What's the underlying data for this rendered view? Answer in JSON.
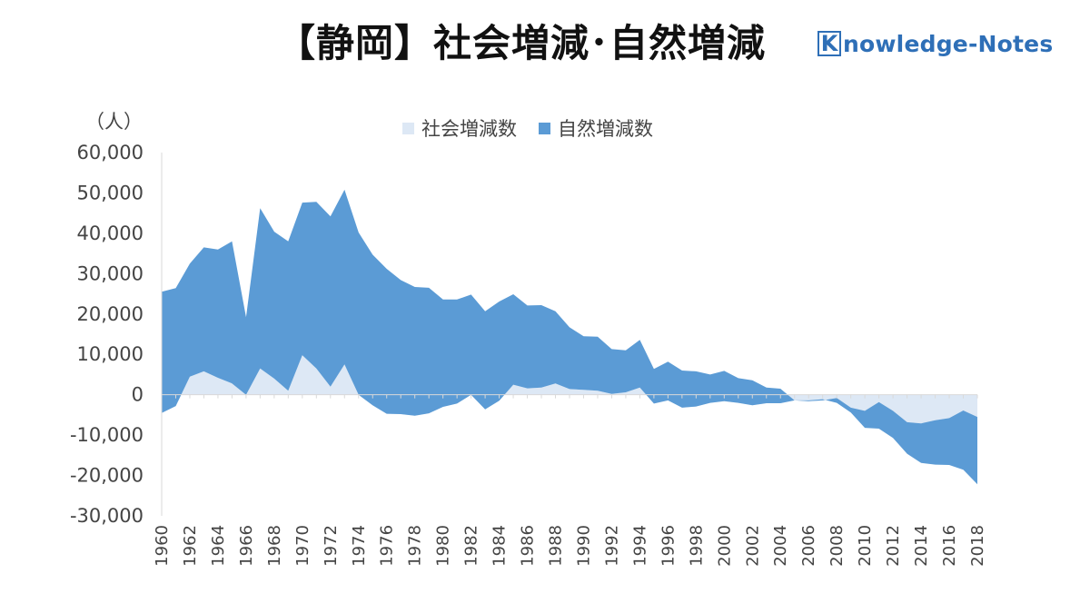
{
  "title": "【静岡】社会増減･自然増減",
  "logo": {
    "mark": "K",
    "text": "nowledge-Notes"
  },
  "colors": {
    "social": "#dde8f5",
    "natural": "#5b9bd5",
    "axis": "#d9d9d9",
    "logo": "#2e6fb7"
  },
  "chart_data": {
    "type": "area",
    "stacked": true,
    "unit_label": "（人）",
    "ylim": [
      -30000,
      60000
    ],
    "y_ticks": [
      60000,
      50000,
      40000,
      30000,
      20000,
      10000,
      0,
      -10000,
      -20000,
      -30000
    ],
    "y_tick_labels": [
      "60,000",
      "50,000",
      "40,000",
      "30,000",
      "20,000",
      "10,000",
      "0",
      "-10,000",
      "-20,000",
      "-30,000"
    ],
    "x_tick_labels": [
      "1960",
      "1962",
      "1964",
      "1966",
      "1968",
      "1970",
      "1972",
      "1974",
      "1976",
      "1978",
      "1980",
      "1982",
      "1984",
      "1986",
      "1988",
      "1990",
      "1992",
      "1994",
      "1996",
      "1998",
      "2000",
      "2002",
      "2004",
      "2006",
      "2008",
      "2010",
      "2012",
      "2014",
      "2016",
      "2018"
    ],
    "x": [
      1960,
      1961,
      1962,
      1963,
      1964,
      1965,
      1966,
      1967,
      1968,
      1969,
      1970,
      1971,
      1972,
      1973,
      1974,
      1975,
      1976,
      1977,
      1978,
      1979,
      1980,
      1981,
      1982,
      1983,
      1984,
      1985,
      1986,
      1987,
      1988,
      1989,
      1990,
      1991,
      1992,
      1993,
      1994,
      1995,
      1996,
      1997,
      1998,
      1999,
      2000,
      2001,
      2002,
      2003,
      2004,
      2005,
      2006,
      2007,
      2008,
      2009,
      2010,
      2011,
      2012,
      2013,
      2014,
      2015,
      2016,
      2017,
      2018
    ],
    "legend": [
      "社会増減数",
      "自然増減数"
    ],
    "series": [
      {
        "name": "社会増減数",
        "values": [
          -4500,
          -2800,
          4500,
          5800,
          4200,
          2800,
          0,
          6500,
          4000,
          1000,
          9800,
          6500,
          2000,
          7500,
          0,
          -2600,
          -4700,
          -4800,
          -5200,
          -4600,
          -3000,
          -2200,
          0,
          -3600,
          -1500,
          2500,
          1600,
          1800,
          2800,
          1400,
          1200,
          1000,
          200,
          600,
          1800,
          -2200,
          -1400,
          -3200,
          -2900,
          -2000,
          -1600,
          -2000,
          -2600,
          -2100,
          -2100,
          -1400,
          -1600,
          -1400,
          -800,
          -3200,
          -4000,
          -1800,
          -4000,
          -6800,
          -7100,
          -6300,
          -5800,
          -3900,
          -5500
        ]
      },
      {
        "name": "自然増減数",
        "values": [
          30000,
          29200,
          28000,
          30700,
          31800,
          35200,
          19200,
          39700,
          36400,
          37000,
          37800,
          41300,
          42200,
          43300,
          40200,
          37300,
          35900,
          33200,
          31900,
          31100,
          26600,
          25800,
          24800,
          24300,
          24600,
          22400,
          20500,
          20400,
          17900,
          15300,
          13300,
          13400,
          11100,
          10400,
          11800,
          8600,
          9600,
          9200,
          8700,
          7000,
          7500,
          6100,
          6200,
          3900,
          3600,
          0,
          200,
          300,
          -1200,
          -1200,
          -4200,
          -6600,
          -6700,
          -7800,
          -9800,
          -11000,
          -11600,
          -14700,
          -16700
        ]
      }
    ]
  }
}
